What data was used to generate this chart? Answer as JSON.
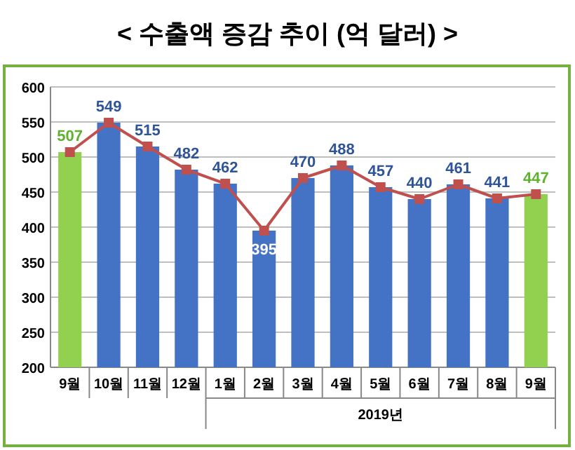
{
  "chart_data": {
    "type": "bar",
    "title": "< 수출액 증감 추이 (억 달러) >",
    "categories": [
      "9월",
      "10월",
      "11월",
      "12월",
      "1월",
      "2월",
      "3월",
      "4월",
      "5월",
      "6월",
      "7월",
      "8월",
      "9월"
    ],
    "series": [
      {
        "colors": [
          "#92d050",
          "#4472c4",
          "#4472c4",
          "#4472c4",
          "#4472c4",
          "#4472c4",
          "#4472c4",
          "#4472c4",
          "#4472c4",
          "#4472c4",
          "#4472c4",
          "#4472c4",
          "#92d050"
        ],
        "values": [
          507,
          549,
          515,
          482,
          462,
          395,
          470,
          488,
          457,
          440,
          461,
          441,
          447
        ]
      },
      {
        "type": "line",
        "color": "#c0504d",
        "marker": "square",
        "values": [
          507,
          549,
          515,
          482,
          462,
          395,
          470,
          488,
          457,
          440,
          461,
          441,
          447
        ],
        "value_labels": [
          "507",
          "549",
          "515",
          "482",
          "462",
          "395",
          "470",
          "488",
          "457",
          "440",
          "461",
          "441",
          "447"
        ]
      }
    ],
    "ylim": [
      200,
      600
    ],
    "yticks": [
      200,
      250,
      300,
      350,
      400,
      450,
      500,
      550,
      600
    ],
    "grid": "y",
    "annotations": [
      "2019년"
    ]
  }
}
